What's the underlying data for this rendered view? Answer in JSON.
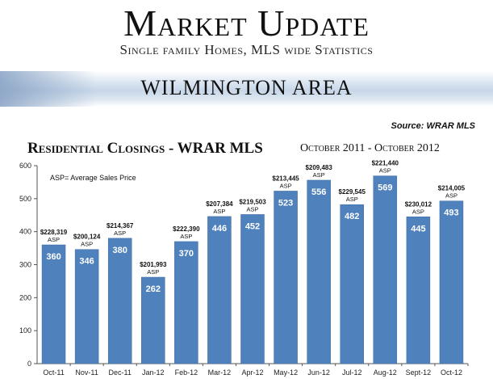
{
  "header": {
    "title": "Market Update",
    "subtitle": "Single family Homes, MLS wide Statistics",
    "area": "WILMINGTON AREA",
    "source": "Source: WRAR MLS"
  },
  "chart_data": {
    "type": "bar",
    "title": "Residential Closings - WRAR MLS",
    "period": "October 2011 - October 2012",
    "annotation": "ASP= Average Sales Price",
    "xlabel": "",
    "ylabel": "",
    "ylim": [
      0,
      600
    ],
    "yticks": [
      0,
      100,
      200,
      300,
      400,
      500,
      600
    ],
    "grid": false,
    "bar_color": "#4f81bd",
    "categories": [
      "Oct-11",
      "Nov-11",
      "Dec-11",
      "Jan-12",
      "Feb-12",
      "Mar-12",
      "Apr-12",
      "May-12",
      "Jun-12",
      "Jul-12",
      "Aug-12",
      "Sept-12",
      "Oct-12"
    ],
    "values": [
      360,
      346,
      380,
      262,
      370,
      446,
      452,
      523,
      556,
      482,
      569,
      445,
      493
    ],
    "asp_values": [
      "$228,319",
      "$200,124",
      "$214,367",
      "$201,993",
      "$222,390",
      "$207,384",
      "$219,503",
      "$213,445",
      "$209,483",
      "$229,545",
      "$221,440",
      "$230,012",
      "$214,005"
    ],
    "asp_suffix": "ASP"
  }
}
